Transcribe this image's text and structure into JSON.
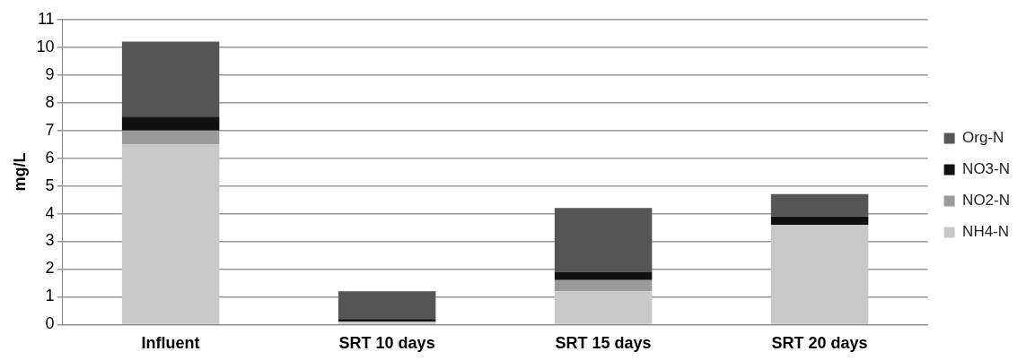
{
  "chart_data": {
    "type": "bar",
    "stacked": true,
    "ylabel": "mg/L",
    "categories": [
      "Influent",
      "SRT 10 days",
      "SRT 15 days",
      "SRT 20 days"
    ],
    "series": [
      {
        "name": "NH4-N",
        "color": "#c8c8c8",
        "values": [
          6.5,
          0.1,
          1.2,
          3.6
        ]
      },
      {
        "name": "NO2-N",
        "color": "#9a9a9a",
        "values": [
          0.5,
          0,
          0.4,
          0
        ]
      },
      {
        "name": "NO3-N",
        "color": "#111111",
        "values": [
          0.5,
          0.1,
          0.3,
          0.3
        ]
      },
      {
        "name": "Org-N",
        "color": "#555555",
        "values": [
          2.7,
          1.0,
          2.3,
          0.8
        ]
      }
    ],
    "ylim": [
      0,
      11
    ],
    "yticks": [
      0,
      1,
      2,
      3,
      4,
      5,
      6,
      7,
      8,
      9,
      10,
      11
    ],
    "grid": "y",
    "legend": "right"
  }
}
